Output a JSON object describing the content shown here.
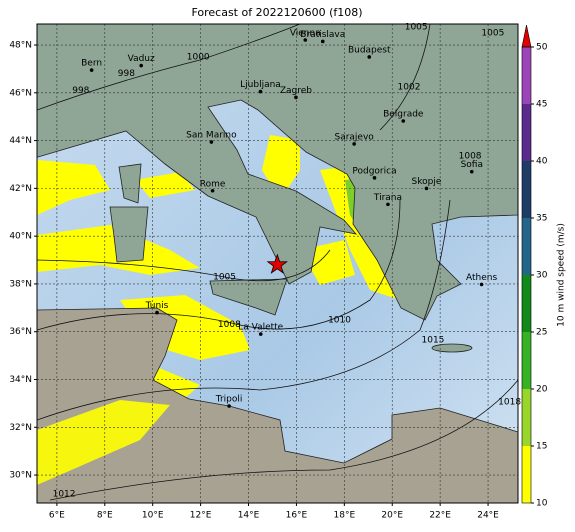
{
  "map_data": {
    "type": "map",
    "title": "Forecast of 2022120600 (f108)",
    "xlim": [
      5.17,
      25.25
    ],
    "ylim": [
      28.83,
      48.88
    ],
    "xticks": [
      {
        "value": 6,
        "label": "6°E"
      },
      {
        "value": 8,
        "label": "8°E"
      },
      {
        "value": 10,
        "label": "10°E"
      },
      {
        "value": 12,
        "label": "12°E"
      },
      {
        "value": 14,
        "label": "14°E"
      },
      {
        "value": 16,
        "label": "16°E"
      },
      {
        "value": 18,
        "label": "18°E"
      },
      {
        "value": 20,
        "label": "20°E"
      },
      {
        "value": 22,
        "label": "22°E"
      },
      {
        "value": 24,
        "label": "24°E"
      }
    ],
    "yticks": [
      {
        "value": 30,
        "label": "30°N"
      },
      {
        "value": 32,
        "label": "32°N"
      },
      {
        "value": 34,
        "label": "34°N"
      },
      {
        "value": 36,
        "label": "36°N"
      },
      {
        "value": 38,
        "label": "38°N"
      },
      {
        "value": 40,
        "label": "40°N"
      },
      {
        "value": 42,
        "label": "42°N"
      },
      {
        "value": 44,
        "label": "44°N"
      },
      {
        "value": 46,
        "label": "46°N"
      },
      {
        "value": 48,
        "label": "48°N"
      }
    ],
    "grid": true,
    "cities": [
      {
        "name": "Bern",
        "lon": 7.45,
        "lat": 46.95
      },
      {
        "name": "Vaduz",
        "lon": 9.52,
        "lat": 47.14
      },
      {
        "name": "Vienna",
        "lon": 16.37,
        "lat": 48.21
      },
      {
        "name": "Bratislava",
        "lon": 17.1,
        "lat": 48.15
      },
      {
        "name": "Budapest",
        "lon": 19.04,
        "lat": 47.5
      },
      {
        "name": "Ljubljana",
        "lon": 14.5,
        "lat": 46.05
      },
      {
        "name": "Zagreb",
        "lon": 15.98,
        "lat": 45.81
      },
      {
        "name": "Belgrade",
        "lon": 20.46,
        "lat": 44.82
      },
      {
        "name": "San Marino",
        "lon": 12.45,
        "lat": 43.94
      },
      {
        "name": "Sarajevo",
        "lon": 18.41,
        "lat": 43.86
      },
      {
        "name": "Rome",
        "lon": 12.5,
        "lat": 41.9
      },
      {
        "name": "Podgorica",
        "lon": 19.26,
        "lat": 42.44
      },
      {
        "name": "Tirana",
        "lon": 19.82,
        "lat": 41.33
      },
      {
        "name": "Skopje",
        "lon": 21.43,
        "lat": 42.0
      },
      {
        "name": "Sofia",
        "lon": 23.32,
        "lat": 42.7
      },
      {
        "name": "Athens",
        "lon": 23.73,
        "lat": 37.98
      },
      {
        "name": "Tunis",
        "lon": 10.18,
        "lat": 36.8
      },
      {
        "name": "La Valette",
        "lon": 14.51,
        "lat": 35.9
      },
      {
        "name": "Tripoli",
        "lon": 13.19,
        "lat": 32.89
      }
    ],
    "marker": {
      "lon": 15.2,
      "lat": 38.8,
      "color": "#e00000"
    },
    "isobar_labels": [
      {
        "value": 1005,
        "lon": 13.0,
        "lat": 38.3
      },
      {
        "value": 1008,
        "lon": 13.2,
        "lat": 36.3
      },
      {
        "value": 1010,
        "lon": 17.8,
        "lat": 36.5
      },
      {
        "value": 1015,
        "lon": 21.7,
        "lat": 35.65
      },
      {
        "value": 1018,
        "lon": 24.9,
        "lat": 33.05
      },
      {
        "value": 1012,
        "lon": 6.3,
        "lat": 29.2
      },
      {
        "value": 1000,
        "lon": 11.9,
        "lat": 47.5
      },
      {
        "value": 998,
        "lon": 8.9,
        "lat": 46.8
      },
      {
        "value": 998,
        "lon": 7.0,
        "lat": 46.1
      },
      {
        "value": 1002,
        "lon": 20.7,
        "lat": 46.25
      },
      {
        "value": 1008,
        "lon": 23.25,
        "lat": 43.35
      },
      {
        "value": 1005,
        "lon": 21.0,
        "lat": 48.75
      },
      {
        "value": 1005,
        "lon": 24.2,
        "lat": 48.5
      }
    ],
    "colorbar": {
      "label": "10 m wind speed (m/s)",
      "bounds": [
        10,
        15,
        20,
        25,
        30,
        35,
        40,
        45,
        50
      ],
      "colors": [
        "#ffff00",
        "#99d62a",
        "#35b324",
        "#128a1a",
        "#24658a",
        "#1d3d66",
        "#5a2b8c",
        "#9c45bb"
      ],
      "extend_color": "#e00000",
      "ticks": [
        10,
        15,
        20,
        25,
        30,
        35,
        40,
        45,
        50
      ]
    }
  }
}
